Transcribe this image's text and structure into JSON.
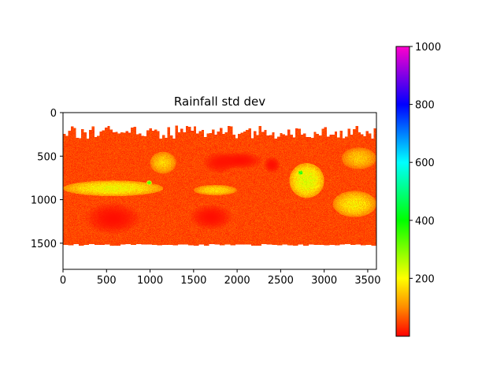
{
  "chart_data": {
    "type": "heatmap",
    "title": "Rainfall std dev",
    "xlabel": "",
    "ylabel": "",
    "xlim": [
      0,
      3600
    ],
    "ylim": [
      1800,
      0
    ],
    "x_ticks": [
      "0",
      "500",
      "1000",
      "1500",
      "2000",
      "2500",
      "3000",
      "3500"
    ],
    "y_ticks": [
      "0",
      "500",
      "1000",
      "1500"
    ],
    "colorbar": {
      "range": [
        0,
        1000
      ],
      "ticks": [
        "200",
        "400",
        "600",
        "800",
        "1000"
      ],
      "colormap": "gist_rainbow_r",
      "stops": [
        {
          "value": 0,
          "color": "#ff0000"
        },
        {
          "value": 100,
          "color": "#ff8c00"
        },
        {
          "value": 200,
          "color": "#ffff00"
        },
        {
          "value": 400,
          "color": "#00ff00"
        },
        {
          "value": 600,
          "color": "#00ffff"
        },
        {
          "value": 800,
          "color": "#0000ff"
        },
        {
          "value": 1000,
          "color": "#ff00cc"
        }
      ]
    },
    "data_extent_rows": [
      150,
      1530
    ],
    "background_value_typical": 20,
    "features": [
      {
        "name": "itcz-pacific",
        "x": [
          0,
          1150
        ],
        "y": [
          780,
          960
        ],
        "value": 200
      },
      {
        "name": "itcz-atlantic",
        "x": [
          1500,
          2000
        ],
        "y": [
          830,
          950
        ],
        "value": 170
      },
      {
        "name": "maritime-continent",
        "x": [
          2600,
          3000
        ],
        "y": [
          580,
          980
        ],
        "value": 220
      },
      {
        "name": "spcz",
        "x": [
          3100,
          3600
        ],
        "y": [
          900,
          1200
        ],
        "value": 180
      },
      {
        "name": "gulf-stream",
        "x": [
          1000,
          1300
        ],
        "y": [
          450,
          700
        ],
        "value": 160
      },
      {
        "name": "kuroshio",
        "x": [
          3200,
          3600
        ],
        "y": [
          400,
          650
        ],
        "value": 150
      },
      {
        "name": "peak-borneo",
        "x": [
          2700,
          2760
        ],
        "y": [
          660,
          720
        ],
        "value": 400
      },
      {
        "name": "peak-panama",
        "x": [
          960,
          1020
        ],
        "y": [
          780,
          830
        ],
        "value": 380
      },
      {
        "name": "dry-south-pacific",
        "x": [
          250,
          900
        ],
        "y": [
          1030,
          1400
        ],
        "value": 10
      },
      {
        "name": "dry-south-atlantic",
        "x": [
          1450,
          1950
        ],
        "y": [
          1050,
          1350
        ],
        "value": 10
      },
      {
        "name": "dry-north-atlantic",
        "x": [
          1600,
          2000
        ],
        "y": [
          450,
          700
        ],
        "value": 15
      },
      {
        "name": "dry-sahara",
        "x": [
          1750,
          2300
        ],
        "y": [
          450,
          650
        ],
        "value": 10
      },
      {
        "name": "dry-arabia",
        "x": [
          2300,
          2500
        ],
        "y": [
          500,
          700
        ],
        "value": 10
      }
    ]
  }
}
